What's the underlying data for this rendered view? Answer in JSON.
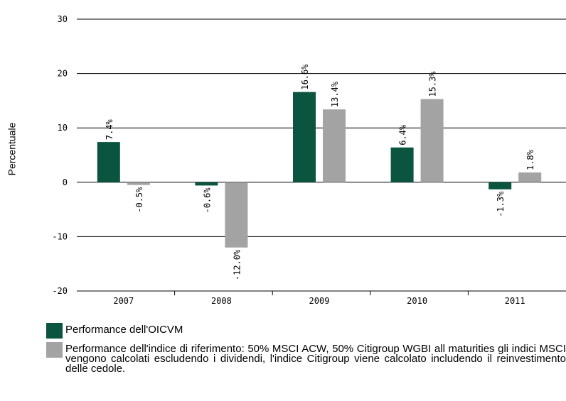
{
  "chart_data": {
    "type": "bar",
    "y_label": "Percentuale",
    "categories": [
      "2007",
      "2008",
      "2009",
      "2010",
      "2011"
    ],
    "series": [
      {
        "name": "Performance dell'OICVM",
        "color": "#0b5440",
        "values": [
          7.4,
          -0.6,
          16.6,
          6.4,
          -1.3
        ],
        "value_labels": [
          "7.4%",
          "-0.6%",
          "16.6%",
          "6.4%",
          "-1.3%"
        ]
      },
      {
        "name": "Performance dell'indice di riferimento: 50% MSCI ACW, 50% Citigroup WGBI all maturities gli indici MSCI vengono calcolati escludendo i dividendi, l'indice Citigroup viene calcolato includendo il reinvestimento delle cedole.",
        "color": "#a3a3a3",
        "values": [
          -0.5,
          -12.0,
          13.4,
          15.3,
          1.8
        ],
        "value_labels": [
          "-0.5%",
          "-12.0%",
          "13.4%",
          "15.3%",
          "1.8%"
        ]
      }
    ],
    "ylim": [
      -20,
      30
    ],
    "yticks": [
      -20,
      -10,
      0,
      10,
      20,
      30
    ],
    "grid": true,
    "legend": "bottom"
  }
}
